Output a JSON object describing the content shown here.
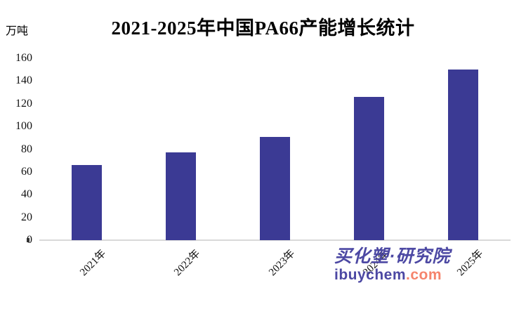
{
  "chart_data": {
    "type": "bar",
    "title": "2021-2025年中国PA66产能增长统计",
    "unit": "万吨",
    "categories": [
      "2021年",
      "2022年",
      "2023年",
      "2024年",
      "2025年"
    ],
    "values": [
      66,
      77,
      91,
      126,
      150
    ],
    "xlabel": "",
    "ylabel": "万吨",
    "ylim": [
      0,
      160
    ],
    "yticks": [
      0,
      20,
      40,
      60,
      80,
      100,
      120,
      140,
      160
    ],
    "grid": false,
    "legend_position": "none",
    "xlabel_rotation_deg": -45,
    "bar_color": "#3b3a94",
    "axis_line_color": "#d9d9d9"
  },
  "watermark": {
    "cn_text": "买化塑·研究院",
    "domain_main": "ibuychem",
    "domain_tld": ".com",
    "purple": "#4c48a3",
    "coral": "#f5846c"
  }
}
